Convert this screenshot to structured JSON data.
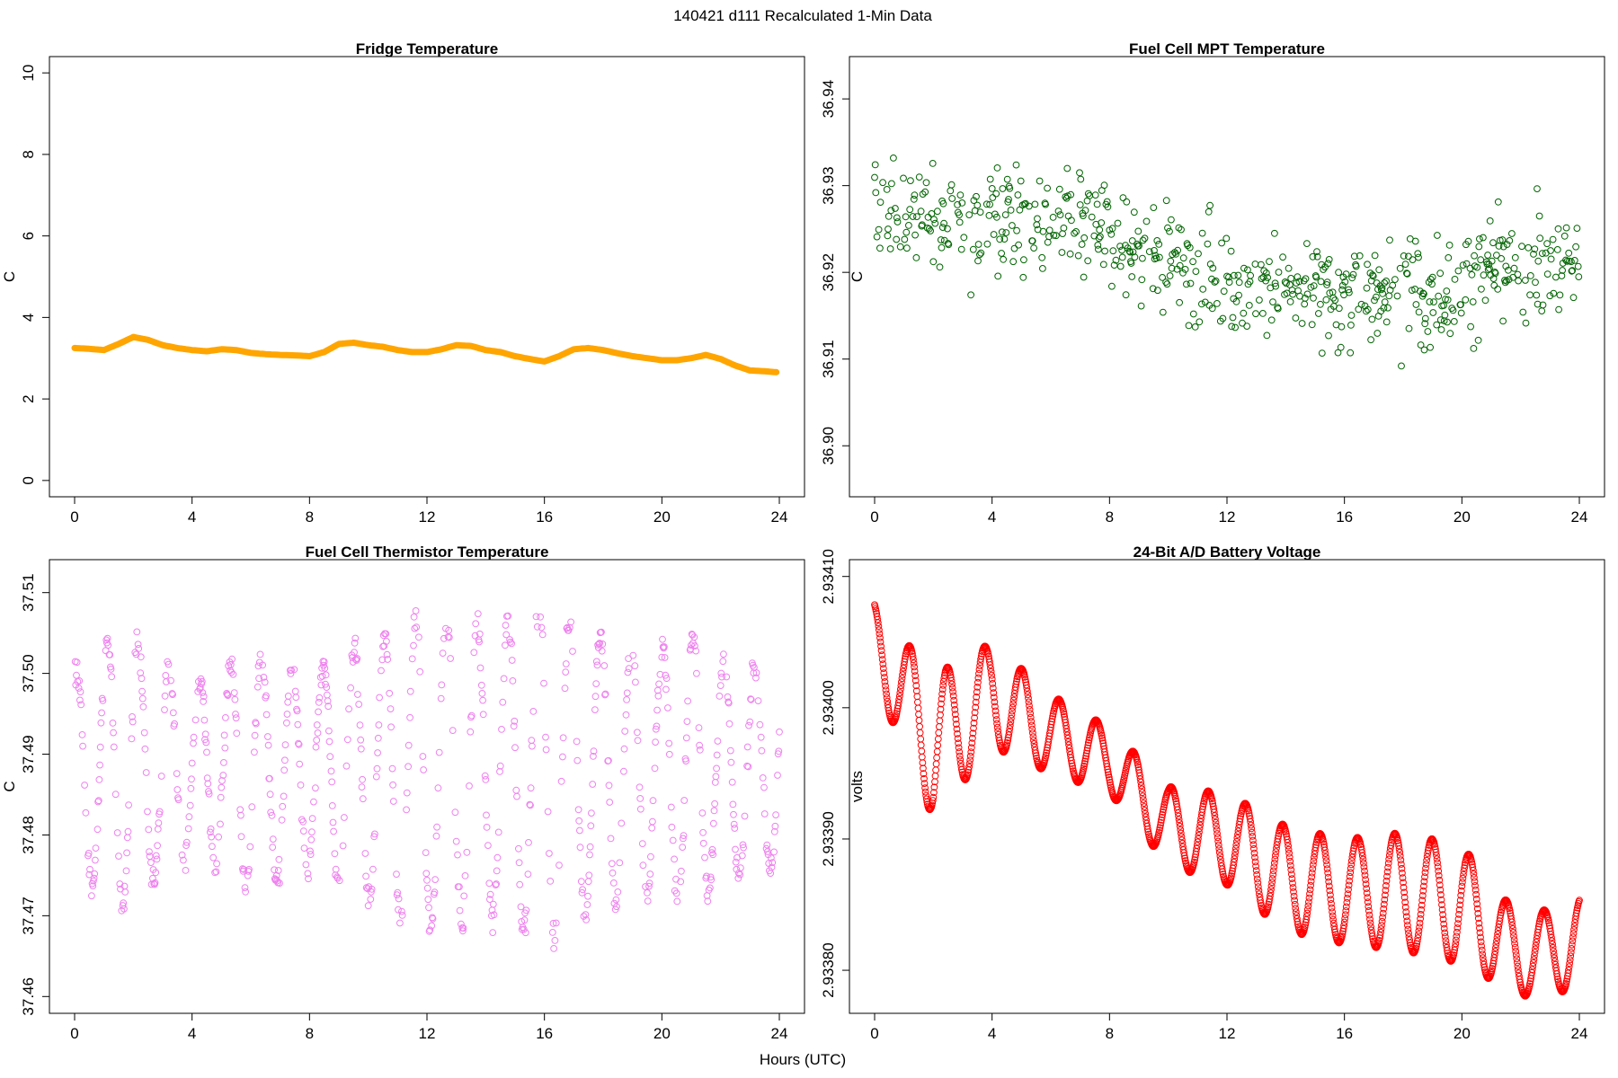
{
  "figure": {
    "title": "140421   d111   Recalculated 1-Min Data",
    "common_xlabel": "Hours (UTC)"
  },
  "chart_data": [
    {
      "type": "line",
      "title": "Fridge Temperature",
      "xlabel": "Hours (UTC)",
      "ylabel": "C",
      "xlim": [
        0,
        24
      ],
      "ylim": [
        0,
        10
      ],
      "xticks": [
        0,
        4,
        8,
        12,
        16,
        20,
        24
      ],
      "yticks": [
        0,
        2,
        4,
        6,
        8,
        10
      ],
      "ytick_labels": [
        "0",
        "2",
        "4",
        "6",
        "8",
        "10"
      ],
      "color": "#FFA500",
      "series": [
        {
          "name": "Fridge Temperature",
          "x": [
            0,
            0.5,
            1.0,
            1.5,
            2.0,
            2.5,
            3.0,
            3.5,
            4.0,
            4.5,
            5.0,
            5.5,
            6.0,
            6.5,
            7.0,
            7.5,
            8.0,
            8.5,
            9.0,
            9.5,
            10.0,
            10.5,
            11.0,
            11.5,
            12.0,
            12.5,
            13.0,
            13.5,
            14.0,
            14.5,
            15.0,
            15.5,
            16.0,
            16.5,
            17.0,
            17.5,
            18.0,
            18.5,
            19.0,
            19.5,
            20.0,
            20.5,
            21.0,
            21.5,
            22.0,
            22.5,
            23.0,
            23.5,
            24.0
          ],
          "values": [
            3.25,
            3.23,
            3.2,
            3.35,
            3.52,
            3.45,
            3.32,
            3.25,
            3.2,
            3.17,
            3.22,
            3.2,
            3.13,
            3.1,
            3.08,
            3.07,
            3.05,
            3.15,
            3.35,
            3.38,
            3.32,
            3.28,
            3.2,
            3.15,
            3.15,
            3.22,
            3.32,
            3.3,
            3.2,
            3.15,
            3.05,
            2.98,
            2.92,
            3.05,
            3.22,
            3.25,
            3.2,
            3.12,
            3.05,
            3.0,
            2.95,
            2.95,
            3.0,
            3.08,
            2.98,
            2.82,
            2.7,
            2.68,
            2.65
          ]
        }
      ]
    },
    {
      "type": "scatter",
      "title": "Fuel Cell MPT Temperature",
      "xlabel": "Hours (UTC)",
      "ylabel": "C",
      "xlim": [
        0,
        24
      ],
      "ylim": [
        36.896,
        36.943
      ],
      "xticks": [
        0,
        4,
        8,
        12,
        16,
        20,
        24
      ],
      "yticks": [
        36.9,
        36.91,
        36.92,
        36.93,
        36.94
      ],
      "ytick_labels": [
        "36.90",
        "36.91",
        "36.92",
        "36.93",
        "36.94"
      ],
      "color": "#006400",
      "points_per_hour": 50,
      "model": {
        "trend_hours": [
          0,
          3,
          6,
          8,
          10,
          12,
          16,
          20,
          24
        ],
        "trend_values": [
          36.927,
          36.926,
          36.926,
          36.924,
          36.921,
          36.919,
          36.917,
          36.919,
          36.921
        ],
        "spread_C": 0.007,
        "y_min": 36.896,
        "y_max": 36.943
      }
    },
    {
      "type": "scatter",
      "title": "Fuel Cell Thermistor Temperature",
      "xlabel": "Hours (UTC)",
      "ylabel": "C",
      "xlim": [
        0,
        24
      ],
      "ylim": [
        37.46,
        37.512
      ],
      "xticks": [
        0,
        4,
        8,
        12,
        16,
        20,
        24
      ],
      "yticks": [
        37.46,
        37.47,
        37.48,
        37.49,
        37.5,
        37.51
      ],
      "ytick_labels": [
        "37.46",
        "37.47",
        "37.48",
        "37.49",
        "37.50",
        "37.51"
      ],
      "color": "#EE82EE",
      "points_per_hour": 50,
      "model": {
        "midline_C": 37.488,
        "amplitude_hours": [
          0,
          1,
          2,
          3,
          4,
          5,
          6,
          7,
          8,
          9,
          10,
          11,
          12,
          13,
          14,
          15,
          16,
          17,
          18,
          19,
          20,
          21,
          22,
          23,
          24
        ],
        "amplitude_values": [
          0.012,
          0.016,
          0.017,
          0.013,
          0.011,
          0.012,
          0.015,
          0.014,
          0.012,
          0.014,
          0.016,
          0.018,
          0.02,
          0.019,
          0.018,
          0.019,
          0.021,
          0.019,
          0.017,
          0.016,
          0.015,
          0.017,
          0.014,
          0.013,
          0.012
        ],
        "period_hours": 1.05,
        "y_min": 37.461,
        "y_max": 37.511
      }
    },
    {
      "type": "scatter",
      "title": "24-Bit A/D Battery Voltage",
      "xlabel": "Hours (UTC)",
      "ylabel": "volts",
      "xlim": [
        0,
        24
      ],
      "ylim": [
        2.93378,
        2.9341
      ],
      "xticks": [
        0,
        4,
        8,
        12,
        16,
        20,
        24
      ],
      "yticks": [
        2.9338,
        2.9339,
        2.934,
        2.9341
      ],
      "ytick_labels": [
        "2.93380",
        "2.93390",
        "2.93400",
        "2.93410"
      ],
      "color": "#FF0000",
      "points_per_hour": 60,
      "model": {
        "trend_hours": [
          0,
          2,
          4,
          6,
          8,
          10,
          12,
          14,
          16,
          18,
          20,
          22,
          24
        ],
        "trend_values": [
          2.93405,
          2.93397,
          2.93401,
          2.93398,
          2.93396,
          2.93391,
          2.9339,
          2.93387,
          2.93386,
          2.93386,
          2.93385,
          2.93381,
          2.93382
        ],
        "amplitude_hours": [
          0,
          2,
          4,
          6,
          8,
          10,
          12,
          14,
          16,
          18,
          20,
          22,
          24
        ],
        "amplitude_values": [
          3e-05,
          5.5e-05,
          4e-05,
          3e-05,
          2.5e-05,
          3e-05,
          3.5e-05,
          4e-05,
          4e-05,
          4.5e-05,
          4.5e-05,
          3e-05,
          3.5e-05
        ],
        "period_hours": 1.27
      }
    }
  ]
}
